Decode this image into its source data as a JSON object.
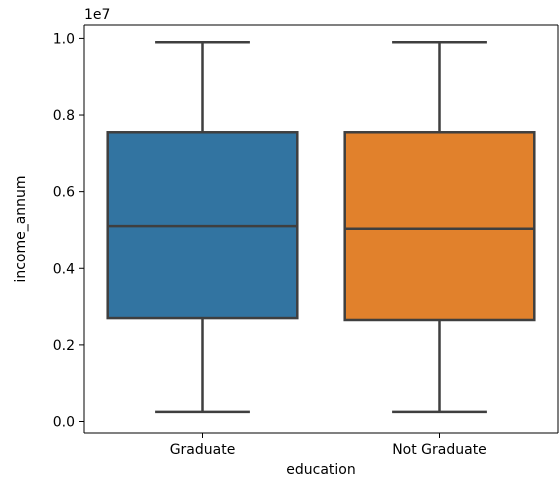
{
  "chart_data": {
    "type": "box",
    "xlabel": "education",
    "ylabel": "income_annum",
    "y_scale_label": "1e7",
    "categories": [
      "Graduate",
      "Not Graduate"
    ],
    "ylim": [
      -0.03,
      1.035
    ],
    "yticks": [
      0.0,
      0.2,
      0.4,
      0.6,
      0.8,
      1.0
    ],
    "ytick_labels": [
      "0.0",
      "0.2",
      "0.4",
      "0.6",
      "0.8",
      "1.0"
    ],
    "boxes": [
      {
        "category": "Graduate",
        "whisker_low": 0.025,
        "q1": 0.27,
        "median": 0.51,
        "q3": 0.755,
        "whisker_high": 0.99,
        "color": "#3274a1"
      },
      {
        "category": "Not Graduate",
        "whisker_low": 0.025,
        "q1": 0.265,
        "median": 0.503,
        "q3": 0.755,
        "whisker_high": 0.99,
        "color": "#e1812c"
      }
    ],
    "line_color": "#3f3f3f",
    "grid": false,
    "legend": "none"
  }
}
